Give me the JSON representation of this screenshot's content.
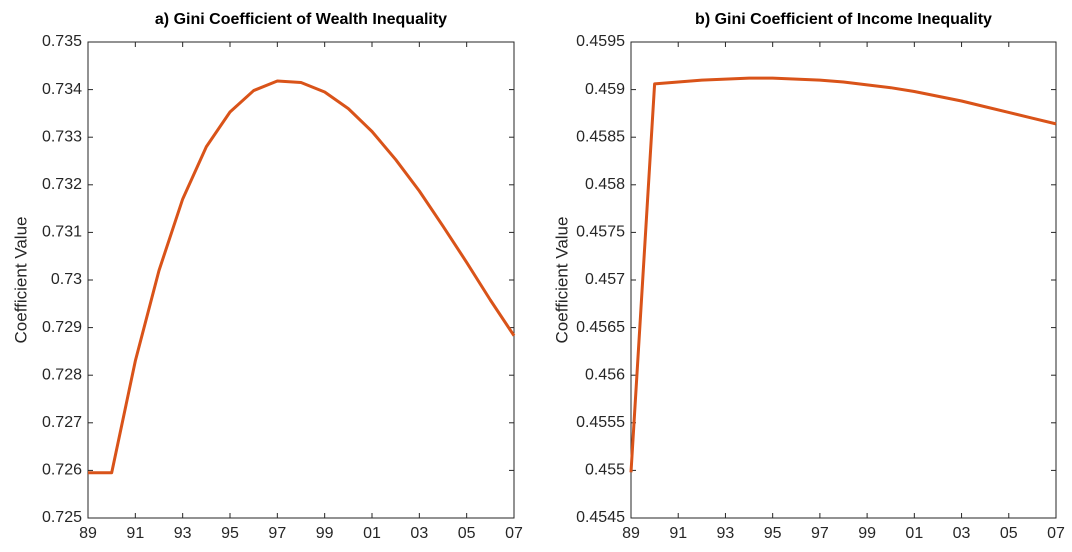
{
  "chart_data": [
    {
      "type": "line",
      "title": "a) Gini Coefficient of Wealth Inequality",
      "ylabel": "Coefficient Value",
      "categories": [
        "89",
        null,
        "91",
        null,
        "93",
        null,
        "95",
        null,
        "97",
        null,
        "99",
        null,
        "01",
        null,
        "03",
        null,
        "05",
        null,
        "07"
      ],
      "values": [
        0.72595,
        0.72595,
        0.7283,
        0.7302,
        0.7317,
        0.7328,
        0.73353,
        0.73398,
        0.73418,
        0.73415,
        0.73395,
        0.7336,
        0.73312,
        0.73253,
        0.73187,
        0.73113,
        0.73037,
        0.72958,
        0.72883
      ],
      "color": "#d95319",
      "ylim": [
        0.725,
        0.735
      ],
      "yticks": [
        0.725,
        0.726,
        0.727,
        0.728,
        0.729,
        0.73,
        0.731,
        0.732,
        0.733,
        0.734,
        0.735
      ]
    },
    {
      "type": "line",
      "title": "b) Gini Coefficient of Income Inequality",
      "ylabel": "Coefficient Value",
      "categories": [
        "89",
        null,
        "91",
        null,
        "93",
        null,
        "95",
        null,
        "97",
        null,
        "99",
        null,
        "01",
        null,
        "03",
        null,
        "05",
        null,
        "07"
      ],
      "values": [
        0.45498,
        0.45906,
        0.45908,
        0.4591,
        0.45911,
        0.45912,
        0.45912,
        0.45911,
        0.4591,
        0.45908,
        0.45905,
        0.45902,
        0.45898,
        0.45893,
        0.45888,
        0.45882,
        0.45876,
        0.4587,
        0.45864
      ],
      "color": "#d95319",
      "ylim": [
        0.4545,
        0.4595
      ],
      "yticks": [
        0.4545,
        0.455,
        0.4555,
        0.456,
        0.4565,
        0.457,
        0.4575,
        0.458,
        0.4585,
        0.459,
        0.4595
      ]
    }
  ]
}
